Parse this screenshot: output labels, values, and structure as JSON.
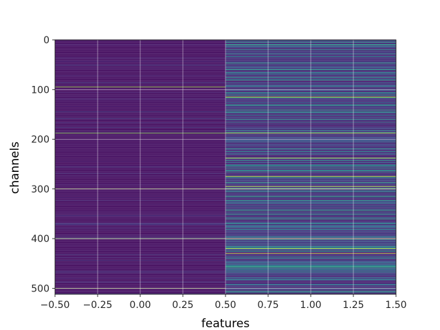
{
  "chart_data": {
    "type": "heatmap",
    "title": "",
    "xlabel": "features",
    "ylabel": "channels",
    "xlim": [
      -0.5,
      1.5
    ],
    "ylim": [
      512,
      0
    ],
    "x_ticks": [
      -0.5,
      -0.25,
      0.0,
      0.25,
      0.5,
      0.75,
      1.0,
      1.25,
      1.5
    ],
    "x_tick_labels": [
      "−0.50",
      "−0.25",
      "0.00",
      "0.25",
      "0.50",
      "0.75",
      "1.00",
      "1.25",
      "1.50"
    ],
    "y_ticks": [
      0,
      100,
      200,
      300,
      400,
      500
    ],
    "y_tick_labels": [
      "0",
      "100",
      "200",
      "300",
      "400",
      "500"
    ],
    "grid": true,
    "colormap": "viridis",
    "columns": [
      0,
      1
    ],
    "rows": 512,
    "value_range": [
      0,
      1
    ],
    "bright_rows": {
      "column_0": [
        95,
        188,
        300,
        400,
        500
      ],
      "column_1": [
        115,
        188,
        238,
        275,
        295,
        300,
        400,
        420,
        430
      ]
    },
    "mean_intensity": {
      "column_0": 0.04,
      "column_1": 0.22
    }
  },
  "colors": {
    "background": "#ffffff",
    "grid": "#ffffff",
    "axis": "#000000",
    "colormap_low": "#440154",
    "colormap_high": "#fde725"
  }
}
